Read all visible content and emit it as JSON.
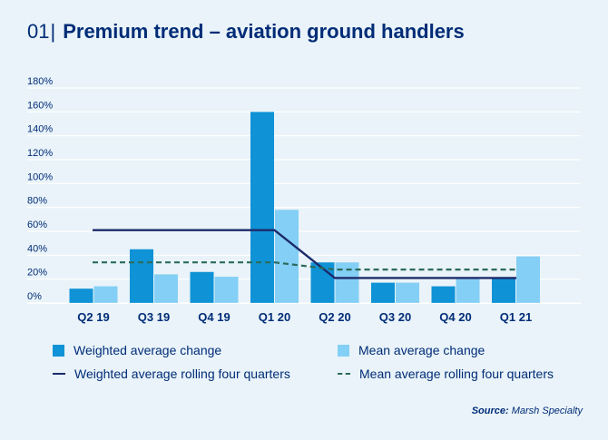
{
  "header": {
    "number": "01",
    "separator": "|",
    "title": "Premium trend – aviation ground handlers"
  },
  "chart_data": {
    "type": "bar",
    "title": "Premium trend – aviation ground handlers",
    "categories": [
      "Q2 19",
      "Q3 19",
      "Q4 19",
      "Q1 20",
      "Q2 20",
      "Q3 20",
      "Q4 20",
      "Q1 21"
    ],
    "ylim": [
      0,
      180
    ],
    "yticks": [
      0,
      20,
      40,
      60,
      80,
      100,
      120,
      140,
      160,
      180
    ],
    "ytick_labels": [
      "0%",
      "20%",
      "40%",
      "60%",
      "80%",
      "100%",
      "120%",
      "140%",
      "160%",
      "180%"
    ],
    "grid": true,
    "series": [
      {
        "name": "Weighted average change",
        "type": "bar",
        "color": "#0f93d6",
        "values": [
          12,
          45,
          26,
          160,
          34,
          17,
          14,
          21
        ]
      },
      {
        "name": "Mean average change",
        "type": "bar",
        "color": "#84cff5",
        "values": [
          14,
          24,
          22,
          78,
          34,
          17,
          20,
          39
        ]
      },
      {
        "name": "Weighted average rolling four quarters",
        "type": "line",
        "style": "solid",
        "color": "#1c2a6b",
        "values": [
          61,
          61,
          61,
          61,
          21,
          21,
          21,
          21
        ]
      },
      {
        "name": "Mean average rolling four quarters",
        "type": "line",
        "style": "dashed",
        "color": "#2b6b5b",
        "values": [
          34,
          34,
          34,
          34,
          28,
          28,
          28,
          28
        ]
      }
    ]
  },
  "legend": {
    "weighted_change": "Weighted average change",
    "mean_change": "Mean average change",
    "weighted_rolling": "Weighted average rolling four quarters",
    "mean_rolling": "Mean average rolling four quarters"
  },
  "source": {
    "label": "Source:",
    "text": "Marsh Specialty"
  }
}
